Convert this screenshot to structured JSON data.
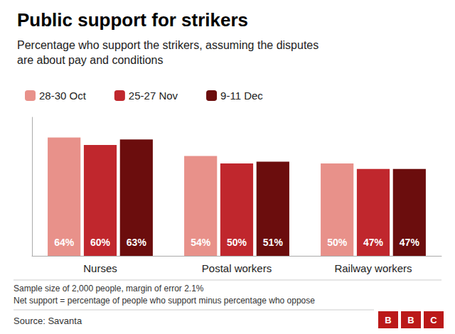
{
  "chart_data": {
    "type": "bar",
    "title": "Public support for strikers",
    "subtitle": "Percentage who support the strikers, assuming the disputes\nare about pay and conditions",
    "categories": [
      "Nurses",
      "Postal workers",
      "Railway workers"
    ],
    "series": [
      {
        "name": "28-30 Oct",
        "color": "#E8918A",
        "values": [
          64,
          54,
          50
        ],
        "value_labels": [
          "64%",
          "54%",
          "50%"
        ]
      },
      {
        "name": "25-27 Nov",
        "color": "#C0272D",
        "values": [
          60,
          50,
          47
        ],
        "value_labels": [
          "60%",
          "50%",
          "47%"
        ]
      },
      {
        "name": "9-11 Dec",
        "color": "#6B0D0D",
        "values": [
          63,
          51,
          47
        ],
        "value_labels": [
          "63%",
          "51%",
          "47%"
        ]
      }
    ],
    "ylim": [
      0,
      75
    ],
    "tick_labels": "x",
    "grid": false,
    "legend": "top",
    "data_labels": true,
    "annotations": [
      "Sample size of 2,000 people, margin of error 2.1%",
      "Net support = percentage of people who support minus percentage who oppose",
      "Source: Savanta"
    ],
    "logo": "BBC"
  }
}
